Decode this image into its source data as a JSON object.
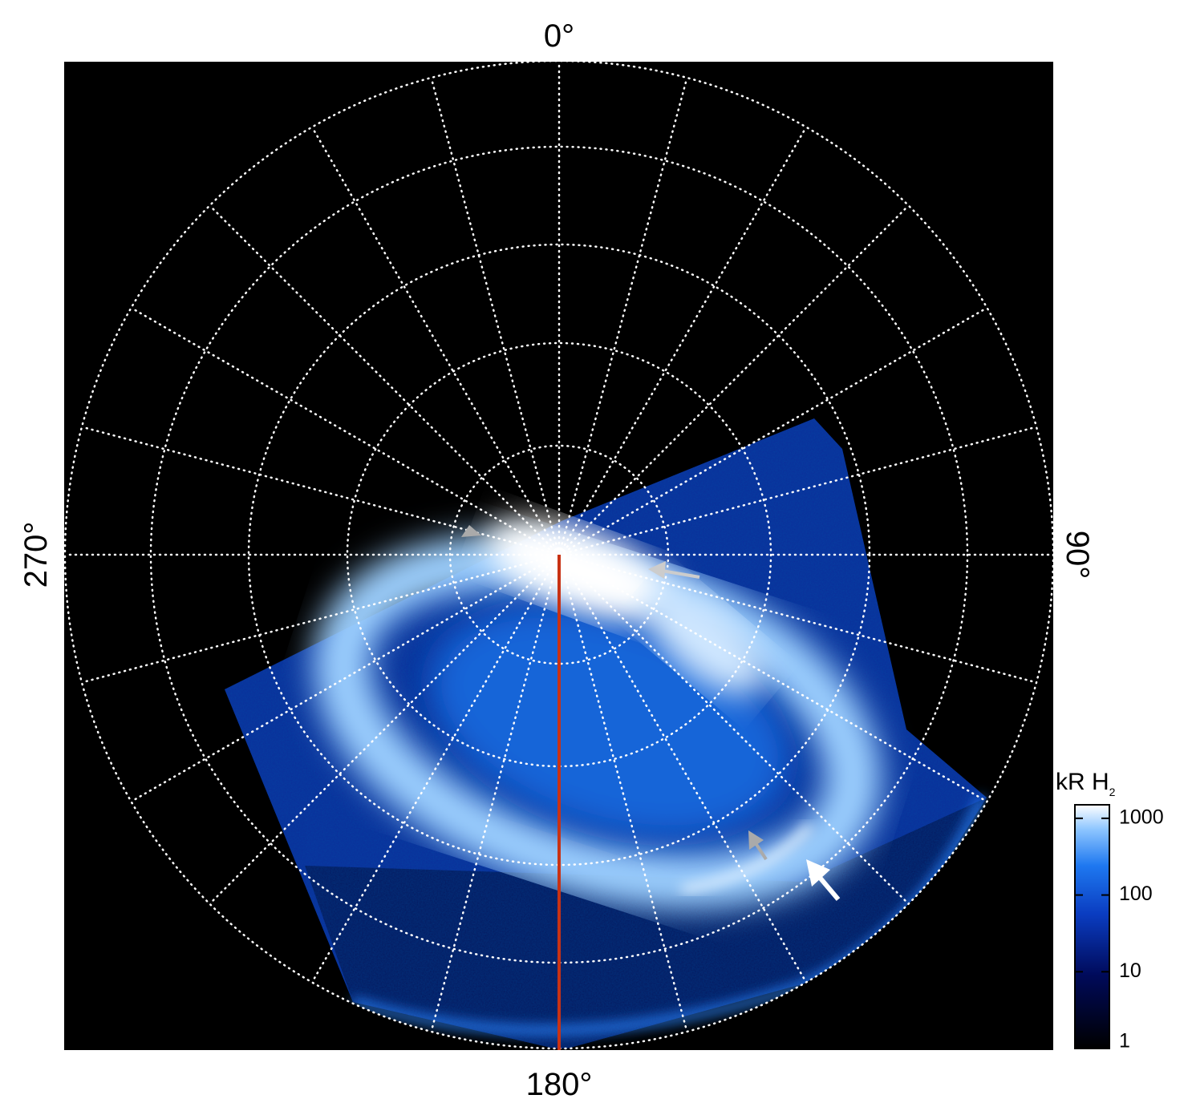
{
  "figure": {
    "angle_labels": {
      "top": "0°",
      "right": "90°",
      "bottom": "180°",
      "left": "270°"
    },
    "colorbar": {
      "label": "kR H",
      "label_subscript": "2",
      "scale": "log",
      "range": [
        1,
        1500
      ],
      "ticks": [
        1,
        10,
        100,
        1000
      ]
    }
  }
}
